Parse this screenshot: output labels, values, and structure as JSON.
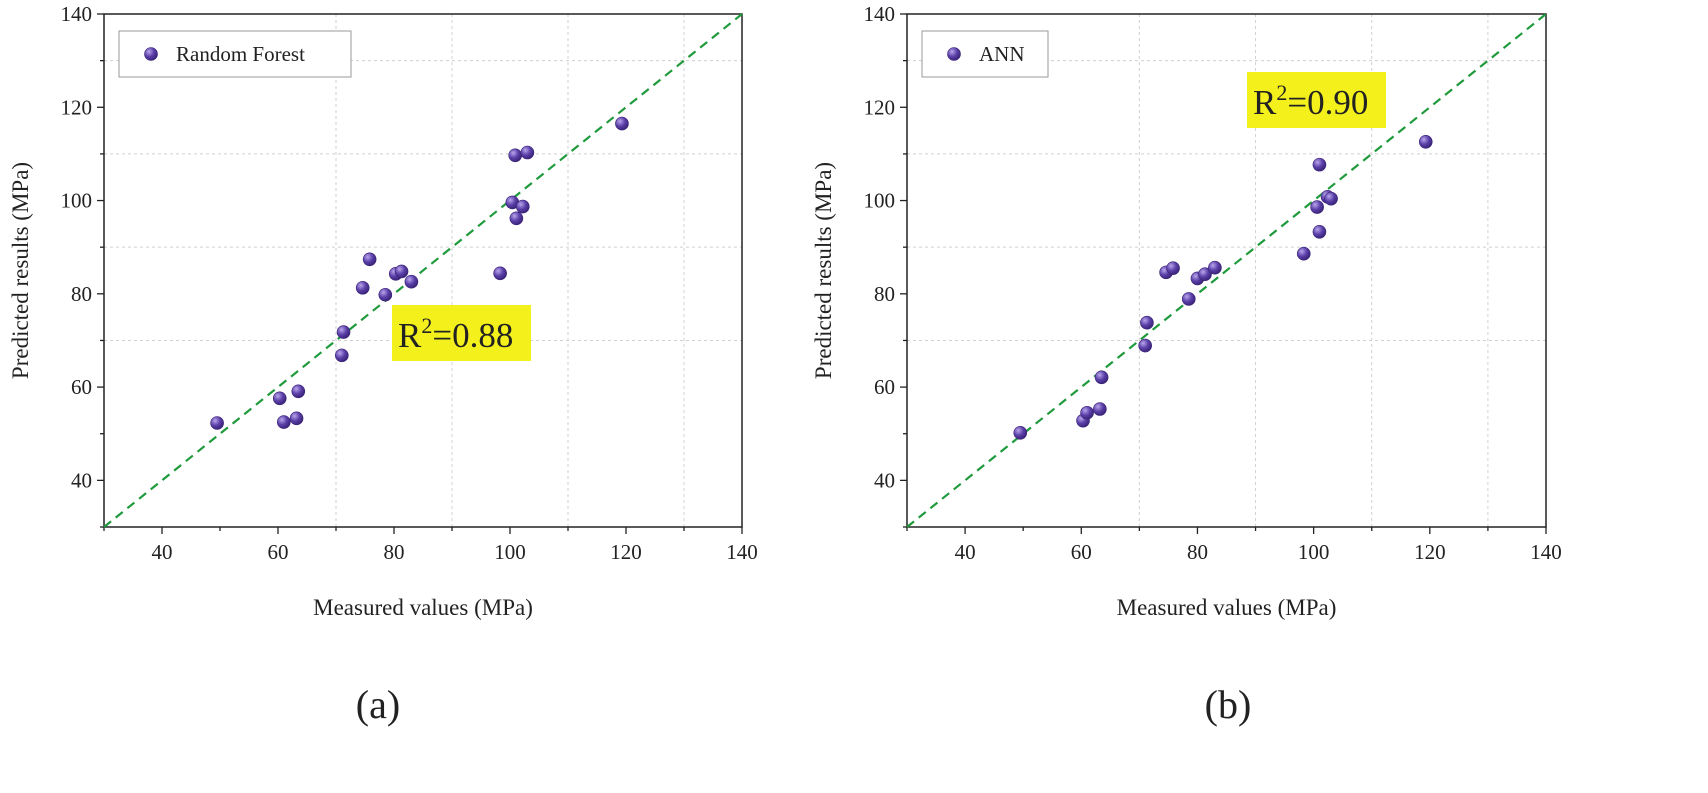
{
  "colors": {
    "marker": "#5b3fa8",
    "marker_highlight": "#b9a6ec",
    "fit_line": "#1f9a3c",
    "grid": "#d0d0d0",
    "axis": "#222222",
    "r2_box": "#f4f01c"
  },
  "chart_data": [
    {
      "type": "scatter",
      "panel": "(a)",
      "legend": "Random Forest",
      "r2_label": "=0.88",
      "xlabel": "Measured values (MPa)",
      "ylabel": "Predicted results (MPa)",
      "xlim": [
        30,
        140
      ],
      "ylim": [
        30,
        140
      ],
      "xticks": [
        40,
        60,
        80,
        100,
        120,
        140
      ],
      "yticks": [
        40,
        60,
        80,
        100,
        120,
        140
      ],
      "grid": true,
      "reference_line": "y = x",
      "points": [
        {
          "x": 49.5,
          "y": 52.3
        },
        {
          "x": 60.3,
          "y": 57.6
        },
        {
          "x": 61.0,
          "y": 52.5
        },
        {
          "x": 63.2,
          "y": 53.3
        },
        {
          "x": 63.5,
          "y": 59.1
        },
        {
          "x": 71.0,
          "y": 66.8
        },
        {
          "x": 71.3,
          "y": 71.8
        },
        {
          "x": 74.6,
          "y": 81.3
        },
        {
          "x": 75.8,
          "y": 87.4
        },
        {
          "x": 78.5,
          "y": 79.8
        },
        {
          "x": 80.3,
          "y": 84.3
        },
        {
          "x": 81.3,
          "y": 84.8
        },
        {
          "x": 83.0,
          "y": 82.6
        },
        {
          "x": 98.3,
          "y": 84.4
        },
        {
          "x": 100.4,
          "y": 99.6
        },
        {
          "x": 100.9,
          "y": 109.7
        },
        {
          "x": 101.1,
          "y": 96.2
        },
        {
          "x": 102.2,
          "y": 98.7
        },
        {
          "x": 103.0,
          "y": 110.3
        },
        {
          "x": 119.3,
          "y": 116.5
        }
      ]
    },
    {
      "type": "scatter",
      "panel": "(b)",
      "legend": "ANN",
      "r2_label": "=0.90",
      "xlabel": "Measured values (MPa)",
      "ylabel": "Predicted results (MPa)",
      "xlim": [
        30,
        140
      ],
      "ylim": [
        30,
        140
      ],
      "xticks": [
        40,
        60,
        80,
        100,
        120,
        140
      ],
      "yticks": [
        40,
        60,
        80,
        100,
        120,
        140
      ],
      "grid": true,
      "reference_line": "y = x",
      "points": [
        {
          "x": 49.5,
          "y": 50.2
        },
        {
          "x": 60.3,
          "y": 52.8
        },
        {
          "x": 61.0,
          "y": 54.5
        },
        {
          "x": 63.2,
          "y": 55.3
        },
        {
          "x": 63.5,
          "y": 62.1
        },
        {
          "x": 71.0,
          "y": 68.9
        },
        {
          "x": 71.3,
          "y": 73.8
        },
        {
          "x": 74.6,
          "y": 84.6
        },
        {
          "x": 75.8,
          "y": 85.5
        },
        {
          "x": 78.5,
          "y": 78.9
        },
        {
          "x": 80.0,
          "y": 83.3
        },
        {
          "x": 81.3,
          "y": 84.2
        },
        {
          "x": 83.0,
          "y": 85.6
        },
        {
          "x": 98.3,
          "y": 88.6
        },
        {
          "x": 100.6,
          "y": 98.6
        },
        {
          "x": 101.0,
          "y": 107.7
        },
        {
          "x": 101.0,
          "y": 93.3
        },
        {
          "x": 102.4,
          "y": 100.8
        },
        {
          "x": 103.0,
          "y": 100.4
        },
        {
          "x": 119.3,
          "y": 112.6
        }
      ]
    }
  ]
}
